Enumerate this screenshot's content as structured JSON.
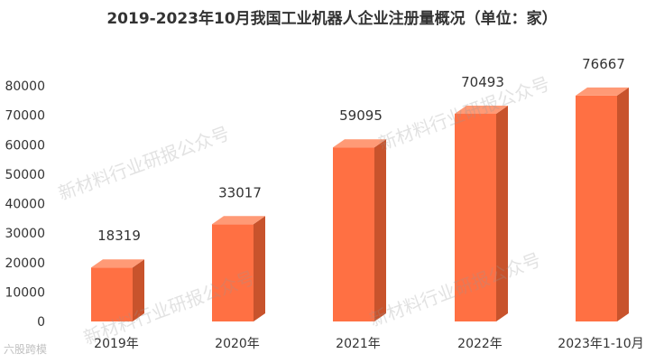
{
  "chart_data": {
    "type": "bar",
    "title": "2019-2023年10月我国工业机器人企业注册量概况（单位：家）",
    "categories": [
      "2019年",
      "2020年",
      "2021年",
      "2022年",
      "2023年1-10月"
    ],
    "values": [
      18319,
      33017,
      59095,
      70493,
      76667
    ],
    "ylim": [
      0,
      80000
    ],
    "yticks": [
      0,
      10000,
      20000,
      30000,
      40000,
      50000,
      60000,
      70000,
      80000
    ],
    "grid": false,
    "colors": {
      "bar_front": "#FF7043",
      "bar_side": "#C8532C",
      "bar_top": "#FF9A76"
    }
  },
  "watermarks": [
    "新材料行业研报公众号",
    "新材料行业研报公众号",
    "新材料行业研报公众号",
    "新材料行业研报公众号"
  ],
  "footer_logo": "六股跨模"
}
